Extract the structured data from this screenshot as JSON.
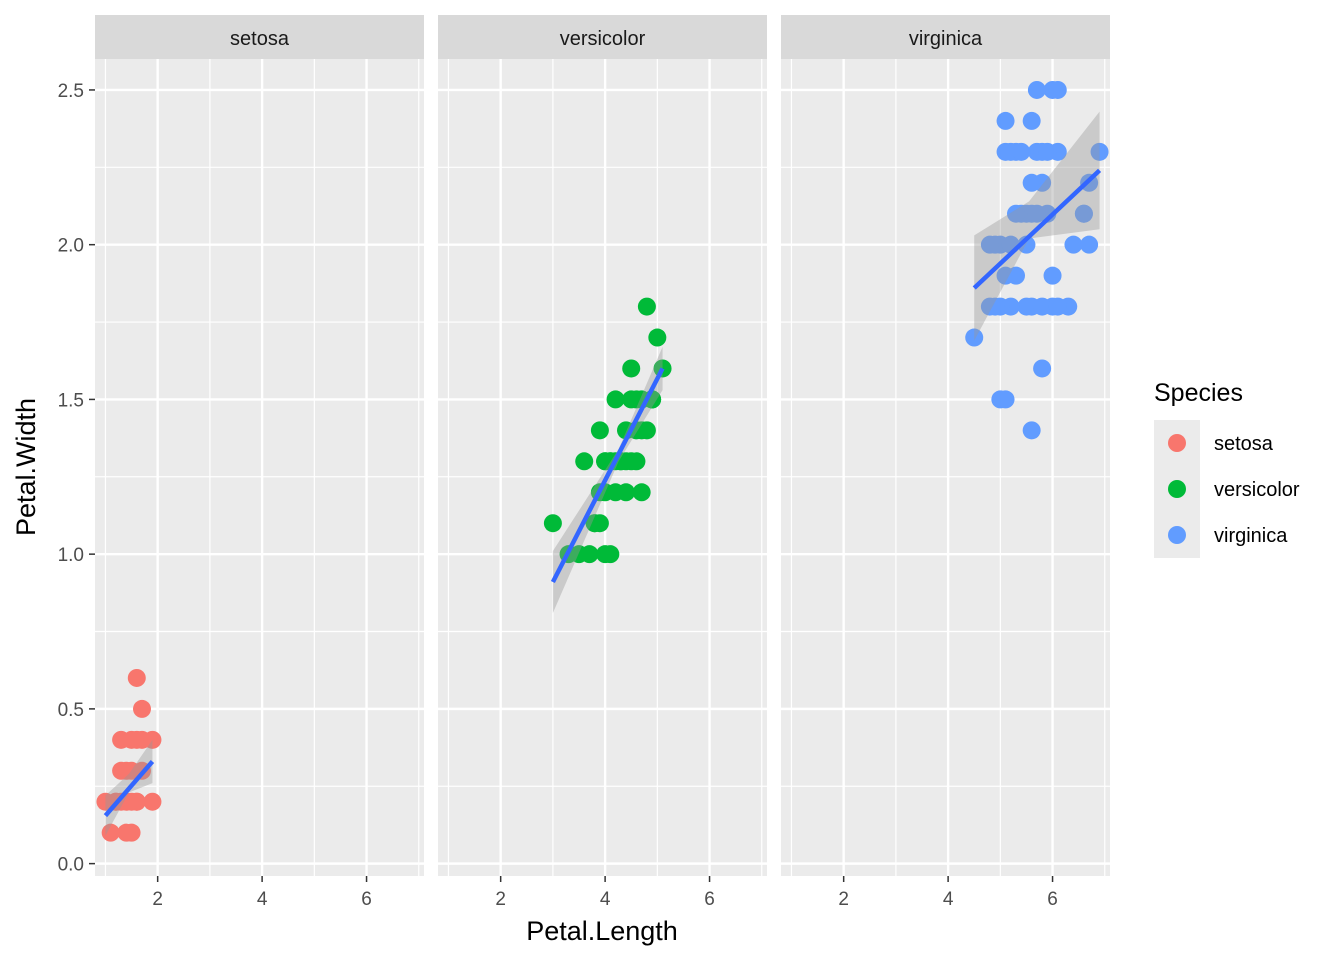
{
  "chart_data": {
    "type": "scatter",
    "facet_by": "Species",
    "xlabel": "Petal.Length",
    "ylabel": "Petal.Width",
    "xlim": [
      0.8,
      7.1
    ],
    "ylim": [
      -0.04,
      2.6
    ],
    "x_ticks": [
      2,
      4,
      6
    ],
    "y_ticks": [
      0.0,
      0.5,
      1.0,
      1.5,
      2.0,
      2.5
    ],
    "y_tick_labels": [
      "0.0",
      "0.5",
      "1.0",
      "1.5",
      "2.0",
      "2.5"
    ],
    "grid": true,
    "smooth": {
      "method": "linear",
      "se": true,
      "line_color": "#3366FF",
      "band_color": "#999999"
    },
    "legend": {
      "title": "Species",
      "position": "right"
    },
    "panels": [
      {
        "name": "setosa",
        "color": "#F8766D",
        "fit": {
          "x": [
            1.0,
            1.9
          ],
          "y": [
            0.155,
            0.33
          ]
        },
        "band": {
          "x": [
            1.0,
            1.45,
            1.9
          ],
          "upper": [
            0.22,
            0.29,
            0.4
          ],
          "lower": [
            0.09,
            0.23,
            0.26
          ]
        },
        "points": [
          [
            1.4,
            0.2
          ],
          [
            1.3,
            0.2
          ],
          [
            1.5,
            0.2
          ],
          [
            1.7,
            0.4
          ],
          [
            1.4,
            0.3
          ],
          [
            1.5,
            0.1
          ],
          [
            1.6,
            0.2
          ],
          [
            1.4,
            0.1
          ],
          [
            1.1,
            0.1
          ],
          [
            1.2,
            0.2
          ],
          [
            1.3,
            0.4
          ],
          [
            1.7,
            0.3
          ],
          [
            1.5,
            0.3
          ],
          [
            1.0,
            0.2
          ],
          [
            1.9,
            0.2
          ],
          [
            1.6,
            0.4
          ],
          [
            1.6,
            0.6
          ],
          [
            1.9,
            0.4
          ],
          [
            1.6,
            0.2
          ],
          [
            1.7,
            0.5
          ],
          [
            1.2,
            0.2
          ],
          [
            1.3,
            0.3
          ],
          [
            1.5,
            0.4
          ]
        ]
      },
      {
        "name": "versicolor",
        "color": "#00BA38",
        "fit": {
          "x": [
            3.0,
            5.1
          ],
          "y": [
            0.91,
            1.6
          ]
        },
        "band": {
          "x": [
            3.0,
            4.26,
            5.1
          ],
          "upper": [
            1.01,
            1.34,
            1.67
          ],
          "lower": [
            0.81,
            1.3,
            1.53
          ]
        },
        "points": [
          [
            4.7,
            1.4
          ],
          [
            4.5,
            1.5
          ],
          [
            4.9,
            1.5
          ],
          [
            4.0,
            1.3
          ],
          [
            4.6,
            1.5
          ],
          [
            3.3,
            1.0
          ],
          [
            3.9,
            1.4
          ],
          [
            3.5,
            1.0
          ],
          [
            4.2,
            1.5
          ],
          [
            3.6,
            1.3
          ],
          [
            4.4,
            1.4
          ],
          [
            4.1,
            1.0
          ],
          [
            4.1,
            1.3
          ],
          [
            4.8,
            1.8
          ],
          [
            4.0,
            1.3
          ],
          [
            4.9,
            1.5
          ],
          [
            4.7,
            1.2
          ],
          [
            4.3,
            1.3
          ],
          [
            4.8,
            1.4
          ],
          [
            5.0,
            1.7
          ],
          [
            3.8,
            1.1
          ],
          [
            3.7,
            1.0
          ],
          [
            3.9,
            1.2
          ],
          [
            5.1,
            1.6
          ],
          [
            4.5,
            1.6
          ],
          [
            4.4,
            1.3
          ],
          [
            4.6,
            1.4
          ],
          [
            3.0,
            1.1
          ],
          [
            4.1,
            1.3
          ],
          [
            4.2,
            1.2
          ],
          [
            4.0,
            1.0
          ],
          [
            4.2,
            1.3
          ],
          [
            4.5,
            1.3
          ],
          [
            4.7,
            1.5
          ],
          [
            3.8,
            1.1
          ],
          [
            4.0,
            1.2
          ],
          [
            3.9,
            1.1
          ],
          [
            4.4,
            1.2
          ],
          [
            4.6,
            1.3
          ],
          [
            4.3,
            1.3
          ],
          [
            4.9,
            1.5
          ]
        ]
      },
      {
        "name": "virginica",
        "color": "#619CFF",
        "fit": {
          "x": [
            4.5,
            6.9
          ],
          "y": [
            1.86,
            2.24
          ]
        },
        "band": {
          "x": [
            4.5,
            5.55,
            6.9
          ],
          "upper": [
            2.03,
            2.14,
            2.43
          ],
          "lower": [
            1.69,
            2.02,
            2.05
          ]
        },
        "points": [
          [
            6.0,
            2.5
          ],
          [
            5.1,
            1.9
          ],
          [
            5.9,
            2.1
          ],
          [
            5.6,
            1.8
          ],
          [
            5.8,
            2.2
          ],
          [
            6.6,
            2.1
          ],
          [
            4.5,
            1.7
          ],
          [
            6.3,
            1.8
          ],
          [
            6.1,
            2.5
          ],
          [
            5.3,
            1.9
          ],
          [
            5.5,
            2.1
          ],
          [
            5.0,
            2.0
          ],
          [
            5.1,
            2.4
          ],
          [
            5.3,
            2.3
          ],
          [
            5.5,
            1.8
          ],
          [
            6.7,
            2.2
          ],
          [
            6.9,
            2.3
          ],
          [
            5.0,
            1.5
          ],
          [
            5.7,
            2.3
          ],
          [
            4.9,
            2.0
          ],
          [
            6.7,
            2.0
          ],
          [
            4.8,
            1.8
          ],
          [
            5.4,
            2.1
          ],
          [
            5.6,
            2.4
          ],
          [
            5.6,
            1.4
          ],
          [
            6.1,
            2.3
          ],
          [
            5.6,
            2.2
          ],
          [
            5.5,
            2.0
          ],
          [
            5.8,
            2.3
          ],
          [
            6.4,
            2.0
          ],
          [
            5.2,
            2.3
          ],
          [
            5.2,
            2.0
          ],
          [
            5.4,
            2.3
          ],
          [
            5.1,
            1.5
          ],
          [
            6.0,
            1.8
          ],
          [
            6.0,
            1.9
          ],
          [
            5.8,
            1.6
          ],
          [
            5.8,
            1.8
          ],
          [
            5.7,
            2.5
          ],
          [
            5.9,
            2.3
          ],
          [
            5.6,
            2.1
          ],
          [
            6.1,
            1.8
          ],
          [
            5.7,
            2.1
          ],
          [
            4.8,
            2.0
          ],
          [
            5.3,
            2.1
          ],
          [
            6.6,
            2.1
          ],
          [
            5.2,
            1.8
          ],
          [
            5.0,
            1.8
          ],
          [
            4.9,
            1.8
          ],
          [
            5.1,
            2.3
          ]
        ]
      }
    ]
  }
}
